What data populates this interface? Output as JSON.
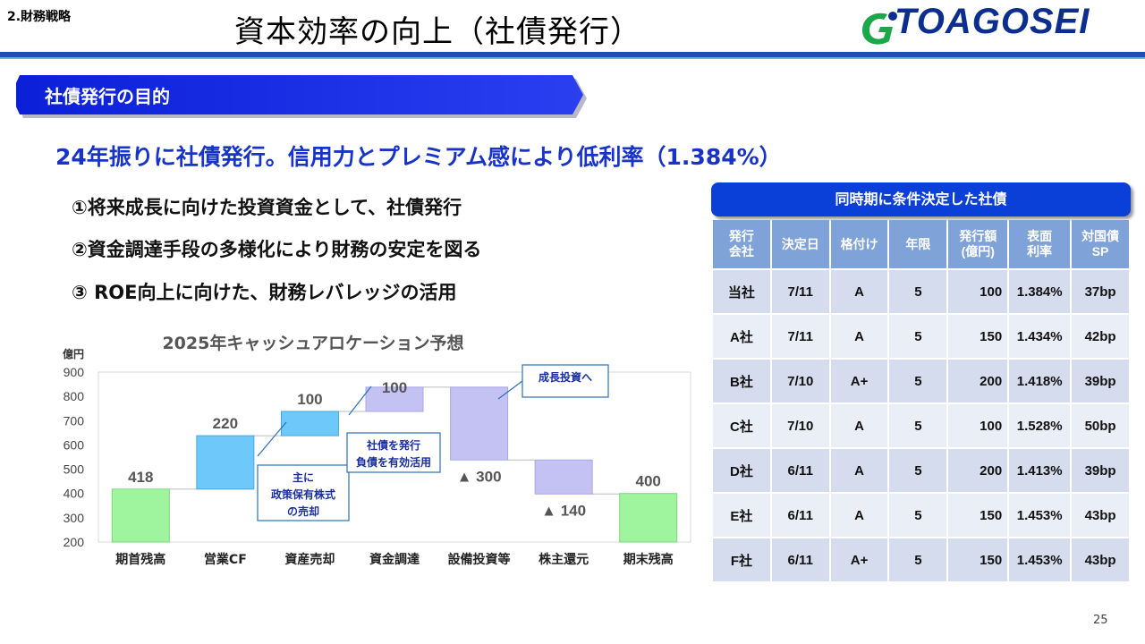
{
  "header": {
    "section": "2.財務戦略",
    "title": "資本効率の向上（社債発行）",
    "logo_text": "TOAGOSEI"
  },
  "banner": {
    "label": "社債発行の目的"
  },
  "headline": "24年振りに社債発行。信用力とプレミアム感により低利率（1.384%）",
  "purposes": [
    "①将来成長に向けた投資資金として、社債発行",
    "②資金調達手段の多様化により財務の安定を図る",
    "③ ROE向上に向けた、財務レバレッジの活用"
  ],
  "chart_data": {
    "type": "bar",
    "subtype": "waterfall",
    "title": "2025年キャッシュアロケーション予想",
    "ylabel": "億円",
    "ylim": [
      200,
      900
    ],
    "yticks": [
      200,
      300,
      400,
      500,
      600,
      700,
      800,
      900
    ],
    "grid": false,
    "categories": [
      "期首残高",
      "営業CF",
      "資産売却",
      "資金調達",
      "設備投資等",
      "株主還元",
      "期末残高"
    ],
    "values": [
      418,
      220,
      100,
      100,
      -300,
      -140,
      400
    ],
    "value_labels": [
      "418",
      "220",
      "100",
      "100",
      "▲ 300",
      "▲ 140",
      "400"
    ],
    "annotations": [
      {
        "text": "主に\n政策保有株式\nの売却",
        "target": "資産売却"
      },
      {
        "text": "社債を発行\n負債を有効活用",
        "target": "資金調達"
      },
      {
        "text": "成長投資へ",
        "target": "設備投資等"
      }
    ],
    "colors": {
      "total": "#9ef59e",
      "increase": "#6fc8fa",
      "financing": "#c4c2f3",
      "decrease": "#c4c2f3"
    }
  },
  "bonds": {
    "title": "同時期に条件決定した社債",
    "columns": [
      "発行\n会社",
      "決定日",
      "格付け",
      "年限",
      "発行額\n(億円)",
      "表面\n利率",
      "対国債\nSP"
    ],
    "rows": [
      [
        "当社",
        "7/11",
        "A",
        "5",
        "100",
        "1.384%",
        "37bp"
      ],
      [
        "A社",
        "7/11",
        "A",
        "5",
        "150",
        "1.434%",
        "42bp"
      ],
      [
        "B社",
        "7/10",
        "A+",
        "5",
        "200",
        "1.418%",
        "39bp"
      ],
      [
        "C社",
        "7/10",
        "A",
        "5",
        "100",
        "1.528%",
        "50bp"
      ],
      [
        "D社",
        "6/11",
        "A",
        "5",
        "200",
        "1.413%",
        "39bp"
      ],
      [
        "E社",
        "6/11",
        "A",
        "5",
        "150",
        "1.453%",
        "43bp"
      ],
      [
        "F社",
        "6/11",
        "A+",
        "5",
        "150",
        "1.453%",
        "43bp"
      ]
    ]
  },
  "page_number": "25"
}
